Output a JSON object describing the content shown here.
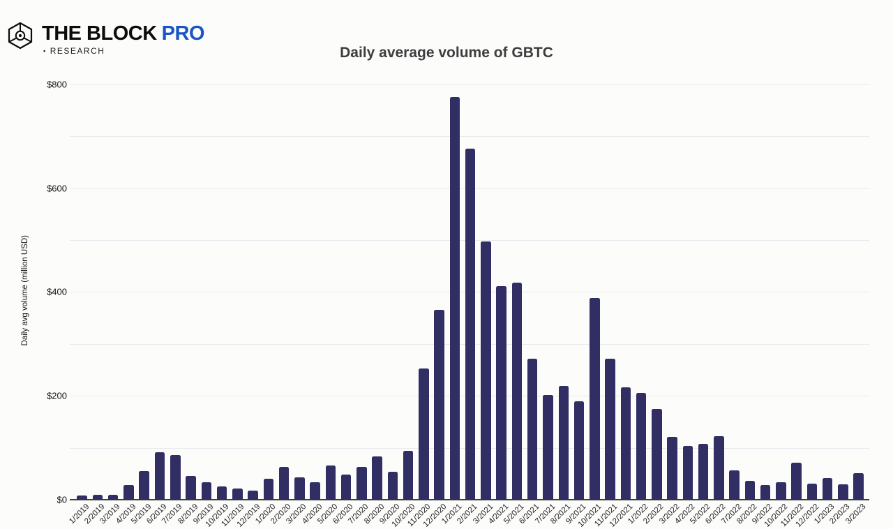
{
  "header": {
    "logo": {
      "brand": "THE BLOCK",
      "brand_suffix": "PRO",
      "bullet": "▪",
      "sub": "RESEARCH",
      "pro_color": "#1b55c5",
      "text_color": "#0c0c0d"
    }
  },
  "chart": {
    "title": "Daily average volume of GBTC",
    "y_axis_title": "Daily avg volume (million USD)"
  },
  "chart_data": {
    "type": "bar",
    "title": "Daily average volume of GBTC",
    "xlabel": "",
    "ylabel": "Daily avg volume (million USD)",
    "ylim": [
      0,
      800
    ],
    "y_tick_labels": [
      "$0",
      "$200",
      "$400",
      "$600",
      "$800"
    ],
    "y_tick_values": [
      0,
      200,
      400,
      600,
      800
    ],
    "grid_step": 100,
    "grid": true,
    "legend": false,
    "bar_color": "#312e63",
    "categories": [
      "1/2019",
      "2/2019",
      "3/2019",
      "4/2019",
      "5/2019",
      "6/2019",
      "7/2019",
      "8/2019",
      "9/2019",
      "10/2019",
      "11/2019",
      "12/2019",
      "1/2020",
      "2/2020",
      "3/2020",
      "4/2020",
      "5/2020",
      "6/2020",
      "7/2020",
      "8/2020",
      "9/2020",
      "10/2020",
      "11/2020",
      "12/2020",
      "1/2021",
      "2/2021",
      "3/2021",
      "4/2021",
      "5/2021",
      "6/2021",
      "7/2021",
      "8/2021",
      "9/2021",
      "10/2021",
      "11/2021",
      "12/2021",
      "1/2022",
      "2/2022",
      "3/2022",
      "4/2022",
      "5/2022",
      "6/2022",
      "7/2022",
      "8/2022",
      "9/2022",
      "10/2022",
      "11/2022",
      "12/2022",
      "1/2023",
      "2/2023",
      "3/2023"
    ],
    "values": [
      8,
      10,
      10,
      28,
      55,
      92,
      86,
      46,
      34,
      25,
      22,
      17,
      40,
      63,
      43,
      33,
      66,
      49,
      63,
      84,
      54,
      94,
      253,
      366,
      776,
      676,
      497,
      411,
      418,
      271,
      202,
      219,
      190,
      388,
      271,
      216,
      206,
      175,
      121,
      104,
      107,
      122,
      56,
      37,
      28,
      33,
      71,
      31,
      42,
      30,
      51
    ]
  }
}
